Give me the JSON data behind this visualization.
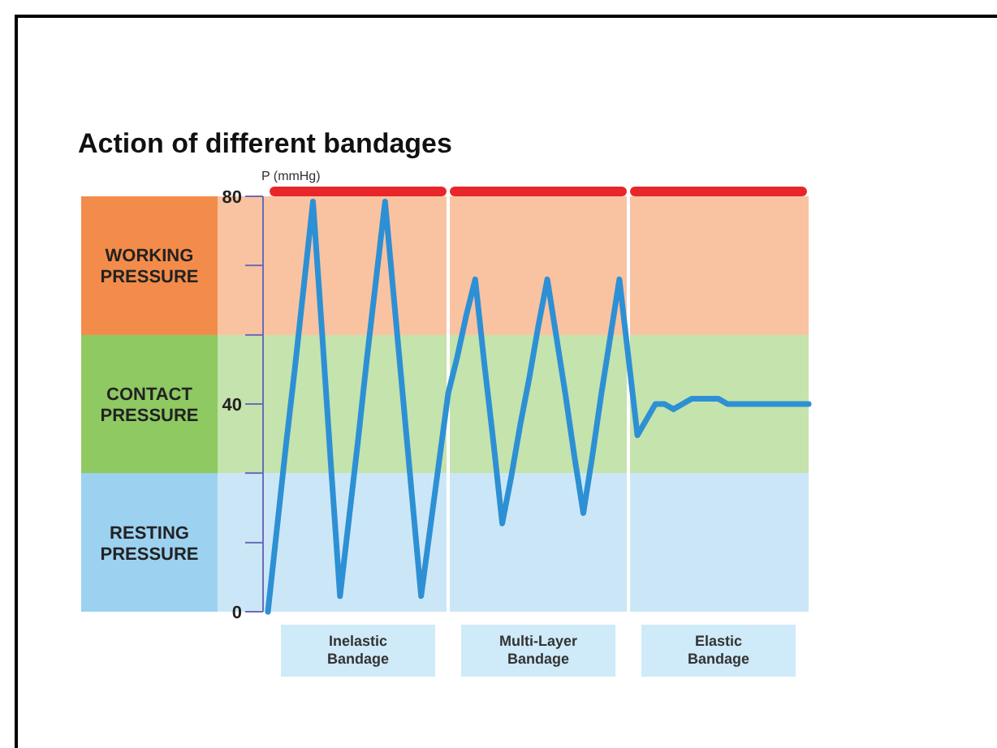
{
  "chart_data": {
    "type": "line",
    "title": "Action of different bandages",
    "ylabel": "P (mmHg)",
    "categories": [
      null,
      null,
      null,
      null,
      null,
      null,
      null,
      null,
      null,
      null,
      null,
      null,
      null,
      null,
      null,
      null,
      null,
      null,
      null,
      null,
      null,
      null,
      null,
      null,
      null,
      null,
      null,
      null,
      null,
      null,
      null,
      null,
      null,
      null,
      null,
      null,
      null,
      null,
      null,
      null,
      null,
      null,
      null,
      null,
      null,
      null,
      null,
      null,
      null,
      null,
      null,
      null,
      null,
      null,
      null,
      null,
      null,
      null,
      null,
      null,
      null
    ],
    "series": [
      {
        "color": "#2e90d4",
        "values": [
          0,
          16,
          32,
          47,
          63,
          79,
          54,
          28,
          3,
          18,
          33,
          49,
          64,
          79,
          60,
          41,
          22,
          3,
          16,
          29,
          42,
          49,
          57,
          64,
          48,
          33,
          17,
          26,
          36,
          45,
          55,
          64,
          53,
          42,
          30,
          19,
          30,
          42,
          53,
          64,
          49,
          34,
          37,
          40,
          40,
          39,
          40,
          41,
          41,
          41,
          41,
          40,
          40,
          40,
          40,
          40,
          40,
          40,
          40,
          40,
          40
        ]
      }
    ],
    "ylim": [
      0,
      80
    ],
    "yticks": [
      0,
      {
        "value": 13.3,
        "label": null
      },
      {
        "value": 26.7,
        "label": null
      },
      40,
      {
        "value": 53.3,
        "label": null
      },
      {
        "value": 66.7,
        "label": null
      },
      80
    ],
    "tick_labels": "y",
    "marker": "none",
    "line_style": "solid",
    "bands": [
      {
        "axis": "y",
        "from": 0,
        "to": 26.7,
        "label": "RESTING PRESSURE",
        "color": "#8ccaee"
      },
      {
        "axis": "y",
        "from": 26.7,
        "to": 53.3,
        "label": "CONTACT PRESSURE",
        "color": "#7cc04a"
      },
      {
        "axis": "y",
        "from": 53.3,
        "to": 80,
        "label": "WORKING PRESSURE",
        "color": "#f27b2e"
      }
    ],
    "annotations": [
      "Inelastic Bandage",
      "Multi-Layer Bandage",
      "Elastic Bandage"
    ]
  }
}
